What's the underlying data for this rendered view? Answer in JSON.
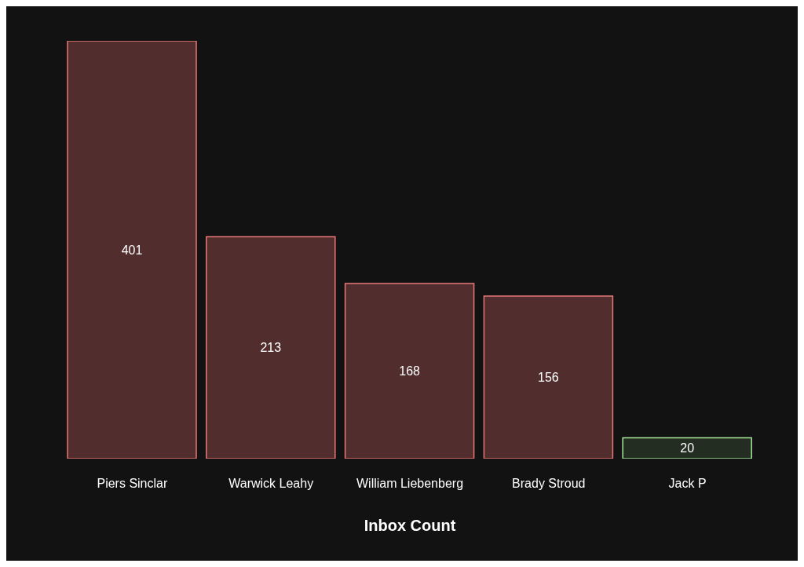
{
  "chart_data": {
    "type": "bar",
    "xlabel": "Inbox Count",
    "categories": [
      "Piers Sinclar",
      "Warwick Leahy",
      "William Liebenberg",
      "Brady Stroud",
      "Jack P"
    ],
    "values": [
      401,
      213,
      168,
      156,
      20
    ],
    "colors": [
      "#522d2d",
      "#522d2d",
      "#522d2d",
      "#522d2d",
      "#232d21"
    ],
    "data_labels": true
  }
}
